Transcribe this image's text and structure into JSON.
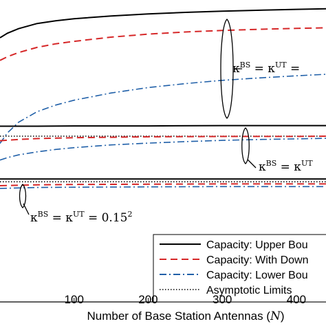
{
  "chart_data": {
    "type": "line",
    "xlabel": "Number of Base Station Antennas (N)",
    "xlabel_plain": "Number of Base Station Antennas (",
    "xlabel_var": "N",
    "xlabel_close": ")",
    "xlim": [
      0,
      440
    ],
    "ylim": [
      0,
      1
    ],
    "xticks": [
      100,
      200,
      300,
      400
    ],
    "xtick_labels": [
      "100",
      "200",
      "300",
      "400"
    ],
    "grid": false,
    "legend_position": "bottom-right",
    "legend": [
      {
        "label": "Capacity: Upper Bou",
        "style": "solid",
        "color": "#000000"
      },
      {
        "label": "Capacity: With Down",
        "style": "dashed",
        "color": "#d62728"
      },
      {
        "label": "Capacity: Lower Bou",
        "style": "dashdot",
        "color": "#1f5fa8"
      },
      {
        "label": "Asymptotic Limits",
        "style": "dotted",
        "color": "#000000"
      }
    ],
    "annotations": [
      {
        "base": "κ",
        "sup1": "BS",
        "mid": " = κ",
        "sup2": "UT",
        "tail": " ="
      },
      {
        "base": "κ",
        "sup1": "BS",
        "mid": " = κ",
        "sup2": "UT",
        "tail": ""
      },
      {
        "base": "κ",
        "sup1": "BS",
        "mid": " = κ",
        "sup2": "UT",
        "tail": " = 0.15",
        "sup3": "2"
      }
    ],
    "series": [
      {
        "group": 1,
        "style": "solid",
        "color": "#000000",
        "x": [
          0,
          10,
          25,
          50,
          75,
          100,
          150,
          200,
          250,
          300,
          350,
          400,
          440
        ],
        "y": [
          0.875,
          0.89,
          0.905,
          0.922,
          0.931,
          0.938,
          0.947,
          0.954,
          0.959,
          0.963,
          0.966,
          0.969,
          0.971
        ]
      },
      {
        "group": 1,
        "style": "dashed",
        "color": "#d62728",
        "x": [
          0,
          10,
          25,
          50,
          75,
          100,
          150,
          200,
          250,
          300,
          350,
          400,
          440
        ],
        "y": [
          0.8,
          0.812,
          0.826,
          0.843,
          0.855,
          0.863,
          0.877,
          0.887,
          0.894,
          0.899,
          0.903,
          0.906,
          0.908
        ]
      },
      {
        "group": 1,
        "style": "dashdot",
        "color": "#1f5fa8",
        "x": [
          0,
          10,
          25,
          50,
          75,
          100,
          150,
          200,
          250,
          300,
          350,
          400,
          440
        ],
        "y": [
          0.525,
          0.56,
          0.595,
          0.63,
          0.652,
          0.668,
          0.692,
          0.71,
          0.723,
          0.734,
          0.742,
          0.749,
          0.754
        ]
      },
      {
        "group": 2,
        "style": "solid",
        "color": "#000000",
        "x": [
          0,
          50,
          100,
          200,
          300,
          440
        ],
        "y": [
          0.582,
          0.582,
          0.583,
          0.583,
          0.584,
          0.584
        ]
      },
      {
        "group": 2,
        "style": "dotted",
        "color": "#000000",
        "x": [
          0,
          440
        ],
        "y": [
          0.549,
          0.549
        ]
      },
      {
        "group": 2,
        "style": "dashed",
        "color": "#d62728",
        "x": [
          0,
          25,
          50,
          100,
          200,
          300,
          400,
          440
        ],
        "y": [
          0.534,
          0.538,
          0.541,
          0.544,
          0.547,
          0.548,
          0.548,
          0.549
        ]
      },
      {
        "group": 2,
        "style": "dashdot",
        "color": "#1f5fa8",
        "x": [
          0,
          10,
          25,
          50,
          75,
          100,
          150,
          200,
          250,
          300,
          350,
          400,
          440
        ],
        "y": [
          0.47,
          0.478,
          0.487,
          0.497,
          0.505,
          0.511,
          0.52,
          0.526,
          0.531,
          0.535,
          0.538,
          0.54,
          0.542
        ]
      },
      {
        "group": 3,
        "style": "solid",
        "color": "#000000",
        "x": [
          0,
          100,
          200,
          300,
          440
        ],
        "y": [
          0.407,
          0.407,
          0.407,
          0.407,
          0.407
        ]
      },
      {
        "group": 3,
        "style": "dotted",
        "color": "#000000",
        "x": [
          0,
          440
        ],
        "y": [
          0.398,
          0.398
        ]
      },
      {
        "group": 3,
        "style": "dashed",
        "color": "#d62728",
        "x": [
          0,
          50,
          100,
          200,
          300,
          440
        ],
        "y": [
          0.385,
          0.388,
          0.389,
          0.39,
          0.391,
          0.391
        ]
      },
      {
        "group": 3,
        "style": "dashdot",
        "color": "#1f5fa8",
        "x": [
          0,
          50,
          100,
          200,
          300,
          440
        ],
        "y": [
          0.376,
          0.379,
          0.38,
          0.381,
          0.382,
          0.382
        ]
      }
    ]
  }
}
